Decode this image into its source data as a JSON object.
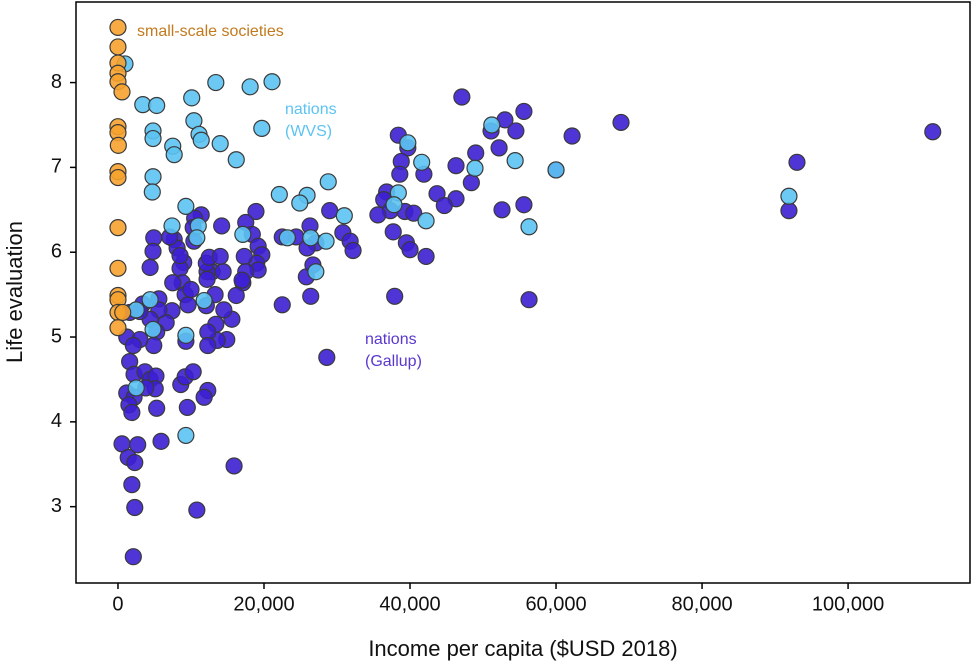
{
  "chart_data": {
    "type": "scatter",
    "xlabel": "Income per capita ($USD 2018)",
    "ylabel": "Life evaluation",
    "xlim": [
      -5750,
      116700
    ],
    "ylim": [
      2.1,
      8.95
    ],
    "xticks": [
      0,
      {
        "value": 20000,
        "label": "20,000"
      },
      {
        "value": 40000,
        "label": "40,000"
      },
      {
        "value": 60000,
        "label": "60,000"
      },
      {
        "value": 80000,
        "label": "80,000"
      },
      {
        "value": 100000,
        "label": "100,000"
      }
    ],
    "yticks": [
      3,
      4,
      5,
      6,
      7,
      8
    ],
    "series": [
      {
        "name": [
          "nations",
          "(Gallup)"
        ],
        "color": "#3c1fd2",
        "label_color": "#5a38cf",
        "x": [
          111600,
          93000,
          91900,
          68900,
          60000,
          62200,
          55600,
          47100,
          53000,
          51100,
          54500,
          52200,
          49000,
          46300,
          46300,
          48400,
          41900,
          43700,
          44700,
          38400,
          39700,
          38800,
          38600,
          36800,
          36400,
          37300,
          39300,
          35600,
          37700,
          40500,
          39500,
          40000,
          42200,
          52600,
          55600,
          37900,
          56300,
          28600,
          29000,
          30800,
          31800,
          32200,
          26300,
          24400,
          27100,
          25900,
          25800,
          26700,
          26400,
          22500,
          22500,
          18900,
          17500,
          18400,
          19200,
          19700,
          19000,
          19200,
          17300,
          17500,
          17100,
          16200,
          15600,
          17000,
          14900,
          13600,
          13400,
          14500,
          13300,
          12100,
          12300,
          12300,
          12900,
          12200,
          12200,
          14400,
          12100,
          12500,
          14000,
          14200,
          11400,
          10500,
          10300,
          10400,
          9000,
          8500,
          8800,
          9200,
          9600,
          10000,
          7700,
          8100,
          7100,
          8500,
          7500,
          7400,
          9300,
          6600,
          5600,
          5600,
          4400,
          5300,
          4900,
          4900,
          4800,
          4400,
          3400,
          3000,
          1600,
          1200,
          3000,
          2100,
          1600,
          2200,
          3700,
          4400,
          5200,
          5100,
          3800,
          1200,
          2200,
          1500,
          1900,
          5300,
          8600,
          9200,
          10300,
          12300,
          11800,
          9500,
          550,
          1400,
          2700,
          2300,
          5900,
          15900,
          1900,
          2300,
          10800,
          2100
        ],
        "values": [
          7.42,
          7.06,
          6.49,
          7.53,
          6.97,
          7.37,
          7.66,
          7.83,
          7.56,
          7.43,
          7.43,
          7.23,
          7.17,
          7.02,
          6.63,
          6.82,
          6.92,
          6.69,
          6.55,
          7.38,
          7.23,
          7.07,
          6.92,
          6.71,
          6.62,
          6.49,
          6.48,
          6.44,
          6.24,
          6.46,
          6.11,
          6.03,
          5.95,
          6.5,
          6.56,
          5.48,
          5.44,
          4.76,
          6.49,
          6.23,
          6.13,
          6.02,
          6.31,
          6.18,
          6.11,
          6.05,
          5.71,
          5.85,
          5.48,
          5.38,
          6.18,
          6.48,
          6.35,
          6.21,
          6.07,
          5.97,
          5.87,
          5.79,
          5.95,
          5.77,
          5.64,
          5.49,
          5.21,
          5.67,
          4.97,
          4.96,
          5.15,
          5.32,
          5.5,
          5.37,
          5.06,
          4.9,
          5.77,
          5.77,
          5.68,
          5.77,
          5.87,
          5.94,
          5.95,
          6.31,
          6.44,
          6.4,
          6.29,
          6.13,
          5.88,
          5.81,
          5.64,
          5.5,
          5.38,
          5.56,
          6.15,
          6.05,
          6.18,
          5.96,
          5.64,
          5.31,
          4.95,
          5.17,
          5.45,
          5.32,
          5.21,
          5.06,
          4.9,
          6.17,
          6.01,
          5.82,
          5.39,
          5.3,
          5.29,
          5.0,
          4.97,
          4.9,
          4.71,
          4.56,
          4.59,
          4.5,
          4.54,
          4.39,
          4.4,
          4.34,
          4.29,
          4.2,
          4.11,
          4.16,
          4.44,
          4.53,
          4.59,
          4.37,
          4.29,
          4.17,
          3.74,
          3.58,
          3.73,
          3.52,
          3.77,
          3.48,
          3.26,
          2.99,
          2.96,
          2.41
        ]
      },
      {
        "name": [
          "nations",
          "(WVS)"
        ],
        "color": "#5cc3f2",
        "label_color": "#5cc3f2",
        "x": [
          960,
          13400,
          21100,
          18100,
          10100,
          3400,
          5300,
          10400,
          19700,
          11100,
          4800,
          4800,
          11400,
          14000,
          7500,
          7700,
          16200,
          39700,
          41600,
          4800,
          4700,
          51200,
          54400,
          60000,
          48900,
          38400,
          37800,
          91900,
          56300,
          42200,
          31000,
          28800,
          25900,
          22100,
          24900,
          9300,
          7400,
          11000,
          10800,
          17100,
          23200,
          26400,
          28500,
          27100,
          2500,
          4400,
          4800,
          11800,
          9300,
          9300,
          2500
        ],
        "values": [
          8.22,
          8.0,
          8.01,
          7.95,
          7.82,
          7.74,
          7.73,
          7.55,
          7.46,
          7.39,
          7.43,
          7.34,
          7.32,
          7.28,
          7.25,
          7.15,
          7.09,
          7.29,
          7.06,
          6.89,
          6.71,
          7.5,
          7.08,
          6.97,
          6.99,
          6.7,
          6.56,
          6.66,
          6.3,
          6.37,
          6.43,
          6.83,
          6.67,
          6.68,
          6.58,
          6.54,
          6.31,
          6.31,
          6.17,
          6.21,
          6.17,
          6.17,
          6.13,
          5.77,
          5.32,
          5.44,
          5.09,
          5.43,
          5.02,
          3.84,
          4.4
        ]
      },
      {
        "name": [
          "small-scale societies"
        ],
        "color": "#f6a22e",
        "label_color": "#c27a1c",
        "x": [
          0,
          0,
          0,
          0,
          0,
          550,
          0,
          0,
          50,
          0,
          0,
          0,
          0,
          0,
          0,
          0,
          0,
          650
        ],
        "values": [
          8.65,
          8.42,
          8.23,
          8.11,
          8.01,
          7.89,
          7.48,
          7.41,
          7.26,
          6.95,
          6.88,
          6.29,
          5.81,
          5.49,
          5.44,
          5.29,
          5.11,
          5.29
        ]
      }
    ]
  }
}
